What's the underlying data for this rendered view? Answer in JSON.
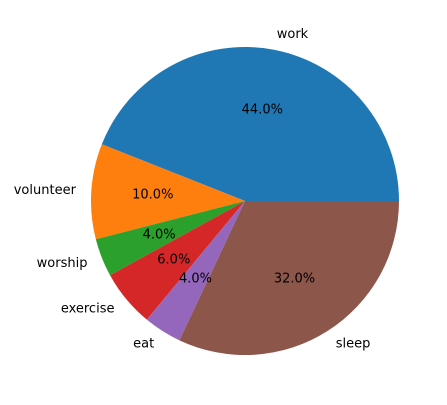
{
  "chart_data": {
    "type": "pie",
    "title": "",
    "categories": [
      "work",
      "volunteer",
      "worship",
      "exercise",
      "eat",
      "sleep"
    ],
    "values": [
      44.0,
      10.0,
      4.0,
      6.0,
      4.0,
      32.0
    ],
    "percent_labels": [
      "44.0%",
      "10.0%",
      "4.0%",
      "6.0%",
      "4.0%",
      "32.0%"
    ],
    "colors": [
      "#1f77b4",
      "#ff7f0e",
      "#2ca02c",
      "#d62728",
      "#9467bd",
      "#8c564b"
    ],
    "start_angle_deg": 0,
    "direction": "counterclockwise",
    "legend": "none"
  }
}
